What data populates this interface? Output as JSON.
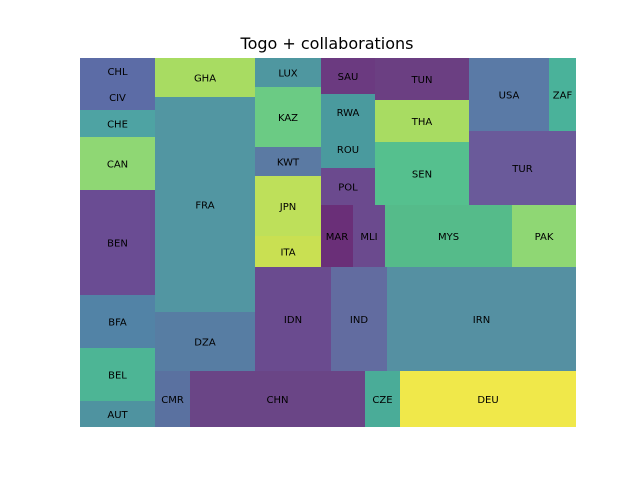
{
  "chart_data": {
    "type": "treemap",
    "title": "Togo + collaborations",
    "rects": [
      {
        "label": "CHL",
        "value": 2.4,
        "color": "#5c6ca6"
      },
      {
        "label": "CIV",
        "value": 2.4,
        "color": "#5c6ca6"
      },
      {
        "label": "CHE",
        "value": 2.02,
        "color": "#4ea3a3"
      },
      {
        "label": "CAN",
        "value": 4.04,
        "color": "#8fd774"
      },
      {
        "label": "BEN",
        "value": 7.98,
        "color": "#6a4c93"
      },
      {
        "label": "BFA",
        "value": 4.04,
        "color": "#5283a6"
      },
      {
        "label": "BEL",
        "value": 4.04,
        "color": "#4db595"
      },
      {
        "label": "AUT",
        "value": 2.02,
        "color": "#4f93a0"
      },
      {
        "label": "GHA",
        "value": 3.83,
        "color": "#a8dc62"
      },
      {
        "label": "FRA",
        "value": 21.74,
        "color": "#5296a2"
      },
      {
        "label": "DZA",
        "value": 5.85,
        "color": "#577da3"
      },
      {
        "label": "CMR",
        "value": 2.2,
        "color": "#5a71a0"
      },
      {
        "label": "LUX",
        "value": 1.9,
        "color": "#4f97a0"
      },
      {
        "label": "KAZ",
        "value": 4.0,
        "color": "#6bcb84"
      },
      {
        "label": "KWT",
        "value": 1.9,
        "color": "#5b7aa3"
      },
      {
        "label": "JPN",
        "value": 3.84,
        "color": "#bee05a"
      },
      {
        "label": "ITA",
        "value": 2.07,
        "color": "#c9e052"
      },
      {
        "label": "IDN",
        "value": 8.02,
        "color": "#6a4b8f"
      },
      {
        "label": "IND",
        "value": 6.1,
        "color": "#626ca0"
      },
      {
        "label": "SAU",
        "value": 1.78,
        "color": "#6b3a80"
      },
      {
        "label": "RWA",
        "value": 1.78,
        "color": "#4a9a9e"
      },
      {
        "label": "ROU",
        "value": 1.7,
        "color": "#4a9a9e"
      },
      {
        "label": "POL",
        "value": 1.78,
        "color": "#6b4a8e"
      },
      {
        "label": "MAR",
        "value": 1.75,
        "color": "#6a2f78"
      },
      {
        "label": "MLI",
        "value": 1.75,
        "color": "#6b4a8e"
      },
      {
        "label": "TUN",
        "value": 3.5,
        "color": "#6b3f82"
      },
      {
        "label": "THA",
        "value": 3.44,
        "color": "#a8dc62"
      },
      {
        "label": "SEN",
        "value": 5.13,
        "color": "#55c08e"
      },
      {
        "label": "MYS",
        "value": 6.66,
        "color": "#55bb8a"
      },
      {
        "label": "USA",
        "value": 4.6,
        "color": "#5a7aa6"
      },
      {
        "label": "ZAF",
        "value": 1.7,
        "color": "#4ab29a"
      },
      {
        "label": "TUR",
        "value": 5.95,
        "color": "#6a5a9a"
      },
      {
        "label": "PAK",
        "value": 3.33,
        "color": "#8fd774"
      },
      {
        "label": "IRN",
        "value": 11.71,
        "color": "#5590a2"
      },
      {
        "label": "CHN",
        "value": 7.06,
        "color": "#6a4586"
      },
      {
        "label": "CZE",
        "value": 1.41,
        "color": "#4aac98"
      },
      {
        "label": "DEU",
        "value": 7.06,
        "color": "#f0e84a"
      }
    ]
  }
}
